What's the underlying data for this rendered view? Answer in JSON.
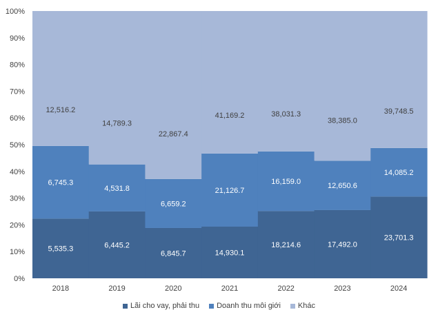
{
  "chart_data": {
    "type": "bar",
    "stacked": "percent",
    "categories": [
      "2018",
      "2019",
      "2020",
      "2021",
      "2022",
      "2023",
      "2024"
    ],
    "series": [
      {
        "name": "Lãi cho vay, phải thu",
        "color": "#3f6593",
        "label_color": "#ffffff",
        "values": [
          5535.3,
          6445.2,
          6845.7,
          14930.1,
          18214.6,
          17492.0,
          23701.3
        ],
        "labels": [
          "5,535.3",
          "6,445.2",
          "6,845.7",
          "14,930.1",
          "18,214.6",
          "17,492.0",
          "23,701.3"
        ]
      },
      {
        "name": "Doanh thu môi giới",
        "color": "#4f81bd",
        "label_color": "#ffffff",
        "values": [
          6745.3,
          4531.8,
          6659.2,
          21126.7,
          16159.0,
          12650.6,
          14085.2
        ],
        "labels": [
          "6,745.3",
          "4,531.8",
          "6,659.2",
          "21,126.7",
          "16,159.0",
          "12,650.6",
          "14,085.2"
        ]
      },
      {
        "name": "Khác",
        "color": "#a7b8d8",
        "label_color": "#404040",
        "values": [
          12516.2,
          14789.3,
          22867.4,
          41169.2,
          38031.3,
          38385.0,
          39748.5
        ],
        "labels": [
          "12,516.2",
          "14,789.3",
          "22,867.4",
          "41,169.2",
          "38,031.3",
          "38,385.0",
          "39,748.5"
        ]
      }
    ],
    "y_ticks": [
      "0%",
      "10%",
      "20%",
      "30%",
      "40%",
      "50%",
      "60%",
      "70%",
      "80%",
      "90%",
      "100%"
    ],
    "ylim": [
      0,
      100
    ],
    "legend_position": "bottom",
    "grid": false
  }
}
